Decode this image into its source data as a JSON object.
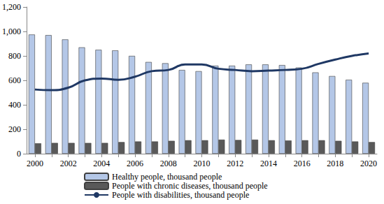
{
  "chart_data": {
    "type": "bar",
    "categories": [
      "2000",
      null,
      "2002",
      null,
      "2004",
      null,
      "2006",
      null,
      "2008",
      null,
      "2010",
      null,
      "2012",
      null,
      "2014",
      null,
      "2016",
      null,
      "2018",
      null,
      "2020"
    ],
    "series": [
      {
        "name": "Healthy people, thousand people",
        "type": "bar",
        "color": "#b4c7e7",
        "values": [
          975,
          970,
          935,
          870,
          850,
          845,
          800,
          750,
          740,
          685,
          675,
          720,
          720,
          730,
          730,
          725,
          705,
          665,
          635,
          605,
          580
        ]
      },
      {
        "name": "People with chronic diseases, thousand people",
        "type": "bar",
        "color": "#595959",
        "values": [
          85,
          88,
          88,
          88,
          88,
          95,
          100,
          100,
          105,
          110,
          110,
          115,
          112,
          115,
          110,
          108,
          110,
          110,
          105,
          100,
          95
        ]
      },
      {
        "name": "People with disabilities, thousand people",
        "type": "line",
        "color": "#1f3864",
        "marker": "none",
        "line_style": "solid",
        "values": [
          525,
          520,
          540,
          600,
          615,
          605,
          630,
          675,
          685,
          730,
          730,
          695,
          685,
          675,
          680,
          685,
          695,
          735,
          770,
          800,
          820
        ]
      }
    ],
    "ylim": [
      0,
      1200
    ],
    "yticks": [
      0,
      200,
      400,
      600,
      800,
      1000,
      1200
    ],
    "grid": false,
    "legend": "bottom"
  }
}
